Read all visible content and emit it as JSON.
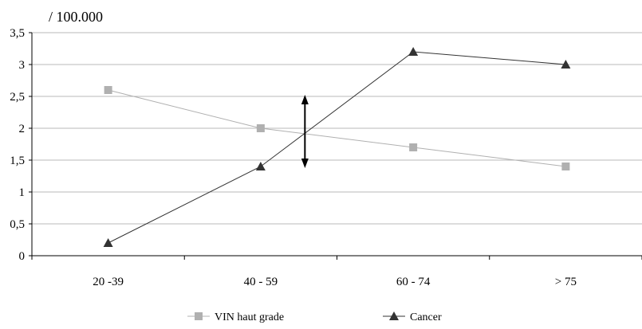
{
  "chart_data": {
    "type": "line",
    "unit_label": "/ 100.000",
    "categories": [
      "20 -39",
      "40 - 59",
      "60 - 74",
      "> 75"
    ],
    "ylim": [
      0,
      3.5
    ],
    "yticks": [
      "0",
      "0,5",
      "1",
      "1,5",
      "2",
      "2,5",
      "3",
      "3,5"
    ],
    "grid": true,
    "legend_position": "bottom",
    "series": [
      {
        "name": "VIN haut grade",
        "values": [
          2.6,
          2.0,
          1.7,
          1.4
        ],
        "color": "#b0b0b0",
        "marker": "square"
      },
      {
        "name": "Cancer",
        "values": [
          0.2,
          1.4,
          3.2,
          3.0
        ],
        "color": "#333333",
        "marker": "triangle"
      }
    ],
    "annotation": {
      "type": "double-arrow",
      "x_between": [
        "40 - 59",
        "60 - 74"
      ],
      "y_range": [
        1.4,
        2.5
      ]
    }
  }
}
